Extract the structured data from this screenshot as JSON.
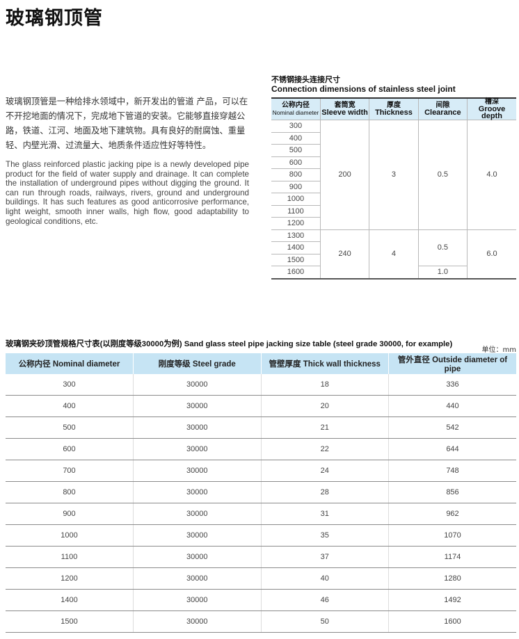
{
  "header": {
    "title": "玻璃钢顶管"
  },
  "intro": {
    "zh": "玻璃钢顶管是一种给排水领域中，新开发出的管道 产品，可以在不开挖地面的情况下，完成地下管道的安装。它能够直接穿越公路，铁道、江河、地面及地下建筑物。具有良好的耐腐蚀、重量轻、内壁光滑、过流量大、地质条件适应性好等特性。",
    "en": "The glass reinforced plastic jacking pipe is a newly developed pipe product for the field of water supply and drainage. It can complete the installation of underground pipes without digging the ground. It can run through roads, railways, rivers, ground and underground buildings. It has such features as good anticorrosive performance, light weight, smooth inner walls, high flow, good adaptability to geological conditions, etc."
  },
  "joint_table": {
    "title_zh": "不锈钢接头连接尺寸",
    "title_en": "Connection dimensions of stainless steel joint",
    "columns": [
      {
        "zh": "公称内径",
        "en": "Nominal diameter"
      },
      {
        "zh": "套筒宽",
        "en": "Sleeve width"
      },
      {
        "zh": "厚度",
        "en": "Thickness"
      },
      {
        "zh": "间隙",
        "en": "Clearance"
      },
      {
        "zh": "槽深",
        "en": "Groove depth"
      }
    ],
    "groups": [
      {
        "sleeve_width": "200",
        "thickness": "3",
        "groove_depth": "4.0",
        "clearance_groups": [
          {
            "clearance": "0.5",
            "diameters": [
              "300",
              "400",
              "500",
              "600",
              "800",
              "900",
              "1000",
              "1100",
              "1200"
            ]
          }
        ]
      },
      {
        "sleeve_width": "240",
        "thickness": "4",
        "groove_depth": "6.0",
        "clearance_groups": [
          {
            "clearance": "0.5",
            "diameters": [
              "1300",
              "1400",
              "1500"
            ]
          },
          {
            "clearance": "1.0",
            "diameters": [
              "1600"
            ]
          }
        ]
      }
    ]
  },
  "size_table": {
    "title": "玻璃钢夹砂顶管规格尺寸表(以刚度等级30000为例) Sand glass steel pipe jacking size table (steel grade 30000, for example)",
    "unit": "单位：mm",
    "columns": [
      "公称内径 Nominal diameter",
      "刚度等级 Steel grade",
      "管壁厚度 Thick wall thickness",
      "管外直径 Outside diameter of pipe"
    ],
    "rows": [
      [
        300,
        30000,
        18,
        336
      ],
      [
        400,
        30000,
        20,
        440
      ],
      [
        500,
        30000,
        21,
        542
      ],
      [
        600,
        30000,
        22,
        644
      ],
      [
        700,
        30000,
        24,
        748
      ],
      [
        800,
        30000,
        28,
        856
      ],
      [
        900,
        30000,
        31,
        962
      ],
      [
        1000,
        30000,
        35,
        1070
      ],
      [
        1100,
        30000,
        37,
        1174
      ],
      [
        1200,
        30000,
        40,
        1280
      ],
      [
        1400,
        30000,
        46,
        1492
      ],
      [
        1500,
        30000,
        50,
        1600
      ]
    ]
  }
}
